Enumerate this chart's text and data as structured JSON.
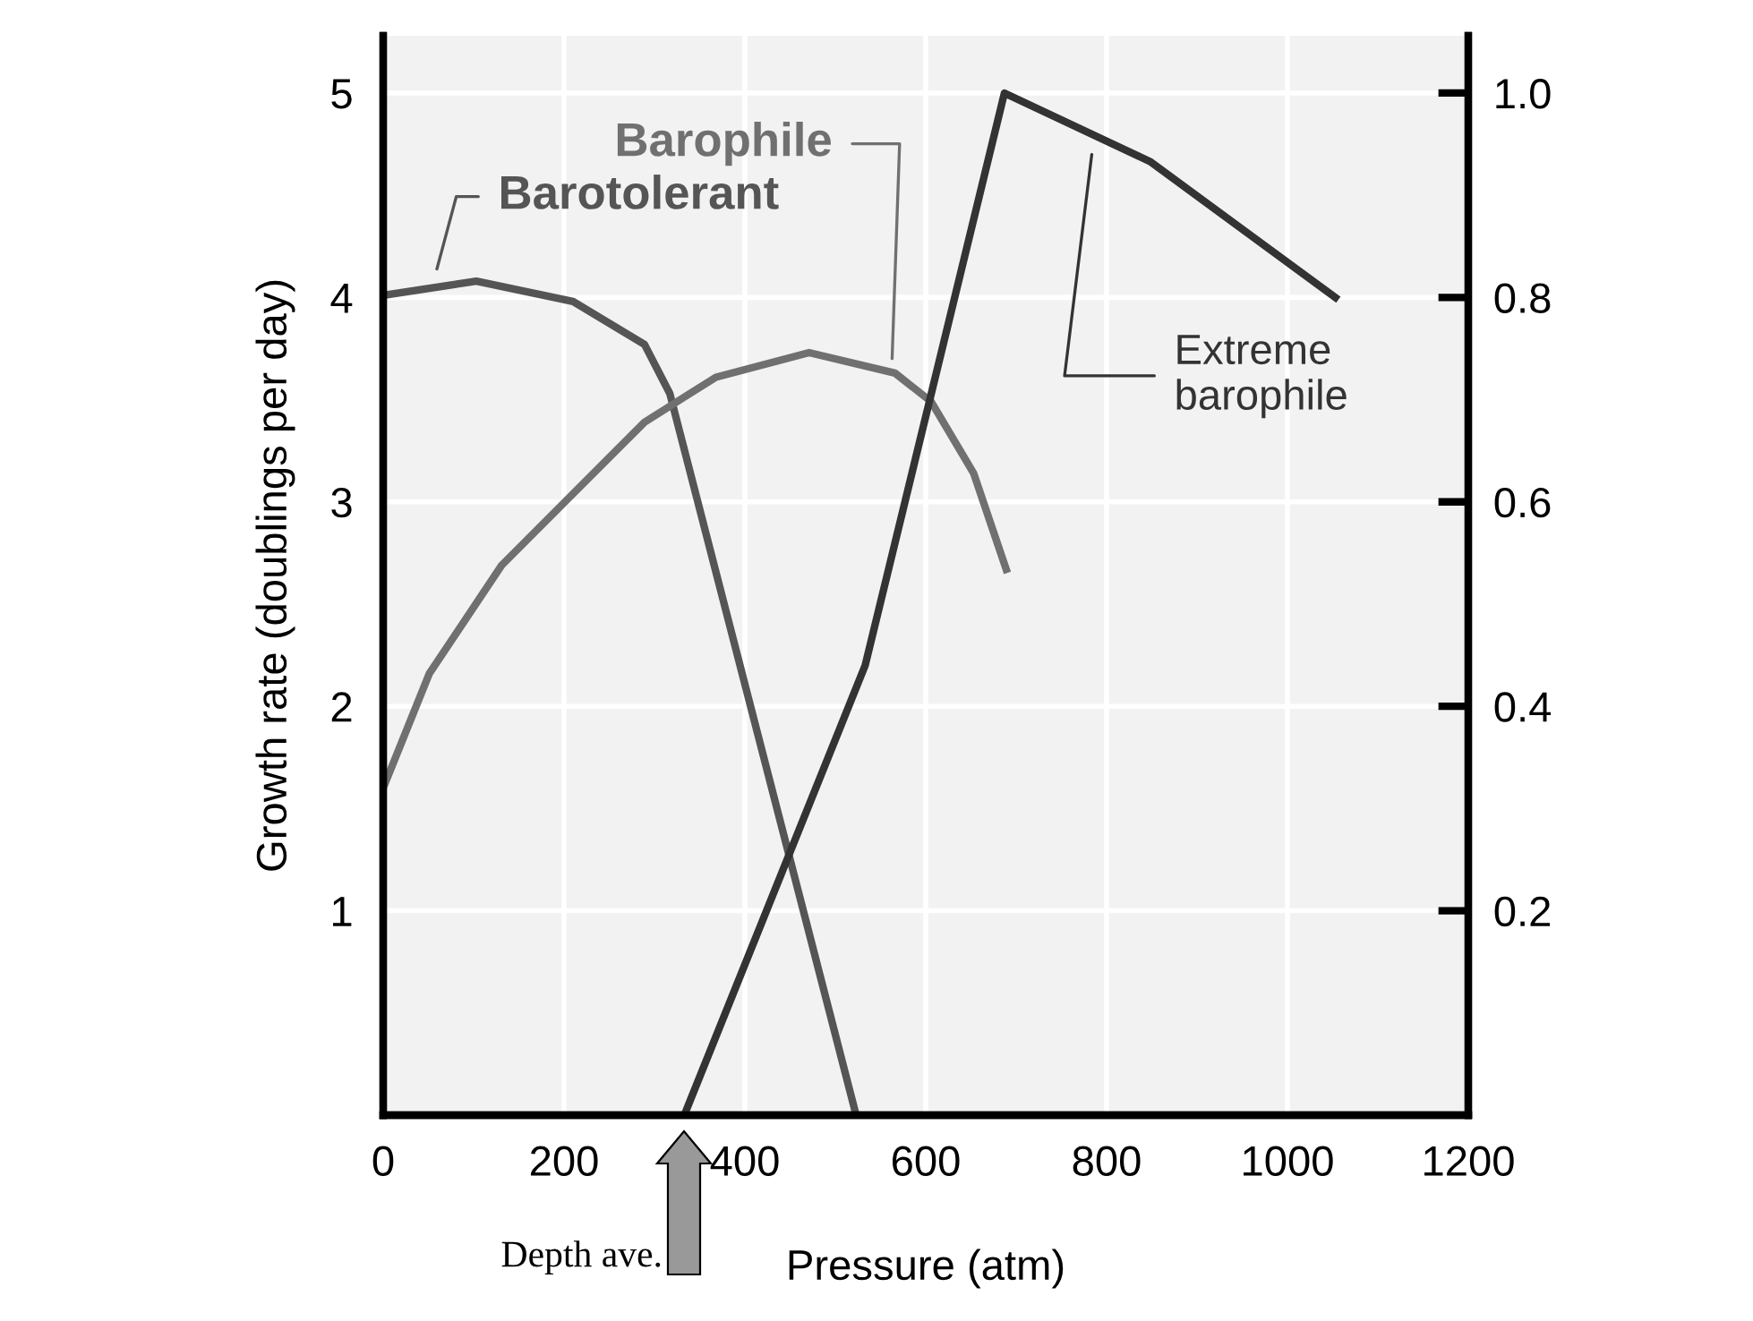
{
  "chart_data": {
    "type": "line",
    "xlabel": "Pressure (atm)",
    "ylabel": "Growth rate (doublings per day)",
    "xlim": [
      0,
      1200
    ],
    "xticks": [
      0,
      200,
      400,
      600,
      800,
      1000,
      1200
    ],
    "ylim": [
      0,
      5.28
    ],
    "yticks": [
      1,
      2,
      3,
      4,
      5
    ],
    "y2lim": [
      0,
      1.056
    ],
    "y2ticks": [
      0.2,
      0.4,
      0.6,
      {
        "value": 0.8,
        "label": "0.8"
      },
      {
        "value": 1.0,
        "label": "1.0"
      }
    ],
    "grid": true,
    "line_style": "solid",
    "marker": "none",
    "series": [
      {
        "color": "#555555",
        "x": [
          0,
          103,
          210,
          289,
          317,
          523
        ],
        "values": [
          4.01,
          4.08,
          3.98,
          3.77,
          3.53,
          0
        ]
      },
      {
        "color": "#707070",
        "x": [
          0,
          51,
          131,
          210,
          289,
          368,
          471,
          566,
          606,
          653,
          689
        ],
        "values": [
          1.6,
          2.16,
          2.69,
          3.04,
          3.39,
          3.61,
          3.73,
          3.63,
          3.49,
          3.14,
          2.67
        ]
      },
      {
        "color": "#333333",
        "axis": "y2",
        "x": [
          333,
          533,
          687,
          848,
          1053
        ],
        "values": [
          0,
          0.44,
          1.0,
          0.933,
          0.8
        ]
      }
    ],
    "annotations": [
      "Barotolerant",
      "Barophile",
      "Extreme\nbarophile",
      "Depth ave."
    ]
  }
}
